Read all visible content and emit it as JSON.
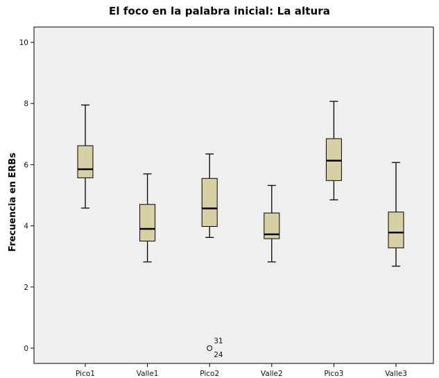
{
  "chart_data": {
    "type": "box",
    "title": "El foco en la palabra inicial: La altura",
    "xlabel": "",
    "ylabel": "Frecuencia en ERBs",
    "ylim": [
      -0.5,
      10.5
    ],
    "yticks": [
      0,
      2,
      4,
      6,
      8,
      10
    ],
    "grid": false,
    "background_color": "#efefef",
    "box_fill_color": "#d6d0a2",
    "categories": [
      "Pico1",
      "Valle1",
      "Pico2",
      "Valle2",
      "Pico3",
      "Valle3"
    ],
    "boxes": [
      {
        "category": "Pico1",
        "whisker_low": 4.58,
        "q1": 5.57,
        "median": 5.85,
        "q3": 6.62,
        "whisker_high": 7.95,
        "outliers": []
      },
      {
        "category": "Valle1",
        "whisker_low": 2.82,
        "q1": 3.5,
        "median": 3.9,
        "q3": 4.7,
        "whisker_high": 5.7,
        "outliers": []
      },
      {
        "category": "Pico2",
        "whisker_low": 3.62,
        "q1": 3.98,
        "median": 4.57,
        "q3": 5.55,
        "whisker_high": 6.35,
        "outliers": [
          {
            "value": 0.0,
            "labels": [
              "31",
              "24"
            ]
          }
        ]
      },
      {
        "category": "Valle2",
        "whisker_low": 2.82,
        "q1": 3.58,
        "median": 3.72,
        "q3": 4.42,
        "whisker_high": 5.32,
        "outliers": []
      },
      {
        "category": "Pico3",
        "whisker_low": 4.85,
        "q1": 5.48,
        "median": 6.13,
        "q3": 6.85,
        "whisker_high": 8.07,
        "outliers": []
      },
      {
        "category": "Valle3",
        "whisker_low": 2.68,
        "q1": 3.28,
        "median": 3.78,
        "q3": 4.45,
        "whisker_high": 6.07,
        "outliers": []
      }
    ]
  }
}
